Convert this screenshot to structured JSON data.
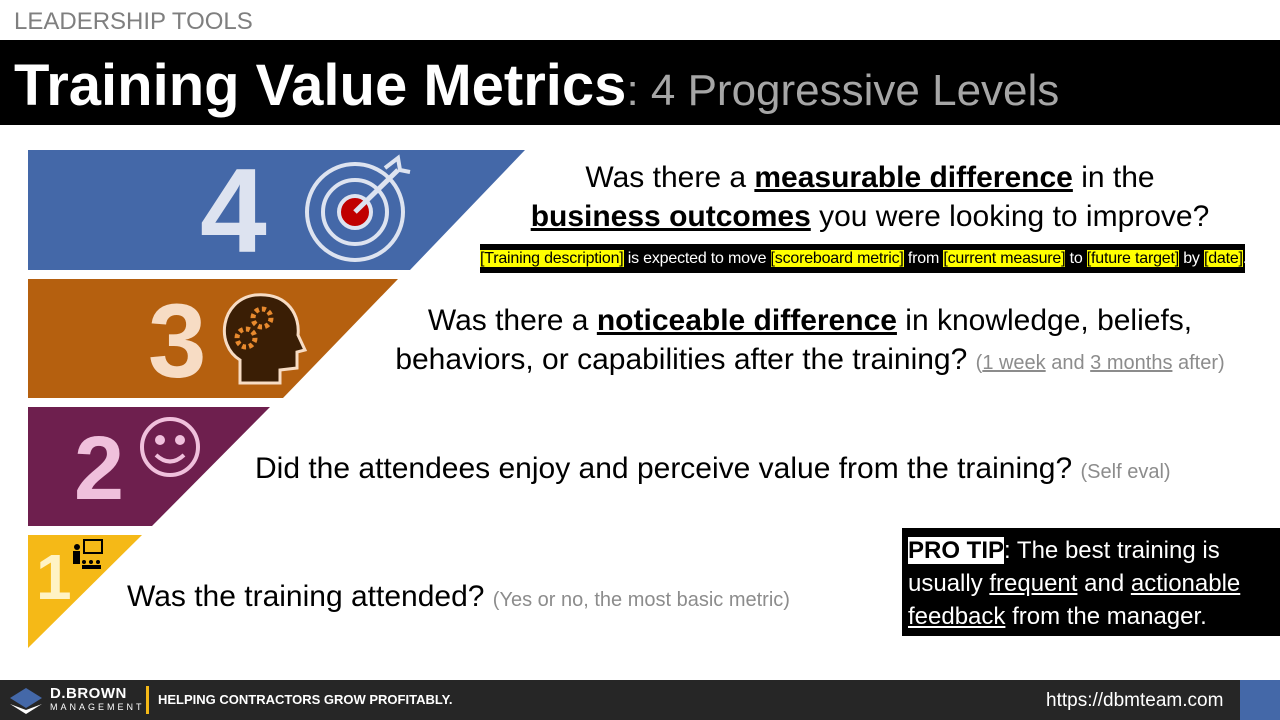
{
  "header": {
    "category": "LEADERSHIP TOOLS",
    "title": "Training Value Metrics",
    "subtitle": ": 4 Progressive Levels"
  },
  "levels": [
    {
      "number": "4",
      "lines": [
        [
          "Was there a ",
          {
            "text": "measurable difference",
            "style": "strong"
          },
          " in the"
        ],
        [
          {
            "text": "business outcomes",
            "style": "strong"
          },
          " you were looking to improve?"
        ]
      ]
    },
    {
      "number": "3",
      "lines": [
        [
          "Was there a ",
          {
            "text": "noticeable difference",
            "style": "strong"
          },
          " in knowledge, beliefs,"
        ],
        [
          "behaviors, or capabilities after the training? ",
          {
            "text": "(",
            "style": "note"
          },
          {
            "text": "1 week",
            "style": "note-link"
          },
          {
            "text": " and ",
            "style": "note"
          },
          {
            "text": "3 months",
            "style": "note-link"
          },
          {
            "text": " after)",
            "style": "note"
          }
        ]
      ]
    },
    {
      "number": "2",
      "lines": [
        [
          "Did the attendees enjoy and perceive value from the training? ",
          {
            "text": "(Self eval)",
            "style": "note"
          }
        ]
      ]
    },
    {
      "number": "1",
      "lines": [
        [
          "Was the training attended? ",
          {
            "text": "(Yes or no, the most basic metric)",
            "style": "note"
          }
        ]
      ]
    }
  ],
  "template": [
    {
      "text": "[Training description]",
      "style": "highlight"
    },
    " is expected to move ",
    {
      "text": "[scoreboard metric]",
      "style": "highlight"
    },
    " from ",
    {
      "text": "[current measure]",
      "style": "highlight"
    },
    " to ",
    {
      "text": "[future target]",
      "style": "highlight"
    },
    " by ",
    {
      "text": "[date]",
      "style": "highlight"
    },
    "."
  ],
  "pro_tip": [
    {
      "text": "PRO TIP",
      "style": "label"
    },
    ": The best training is usually ",
    {
      "text": "frequent",
      "style": "link"
    },
    " and ",
    {
      "text": "actionable feedback",
      "style": "link"
    },
    " from the manager."
  ],
  "footer": {
    "brand": "D.BROWN",
    "brand_sub": "MANAGEMENT",
    "tagline": "HELPING CONTRACTORS GROW PROFITABLY.",
    "url": "https://dbmteam.com"
  }
}
